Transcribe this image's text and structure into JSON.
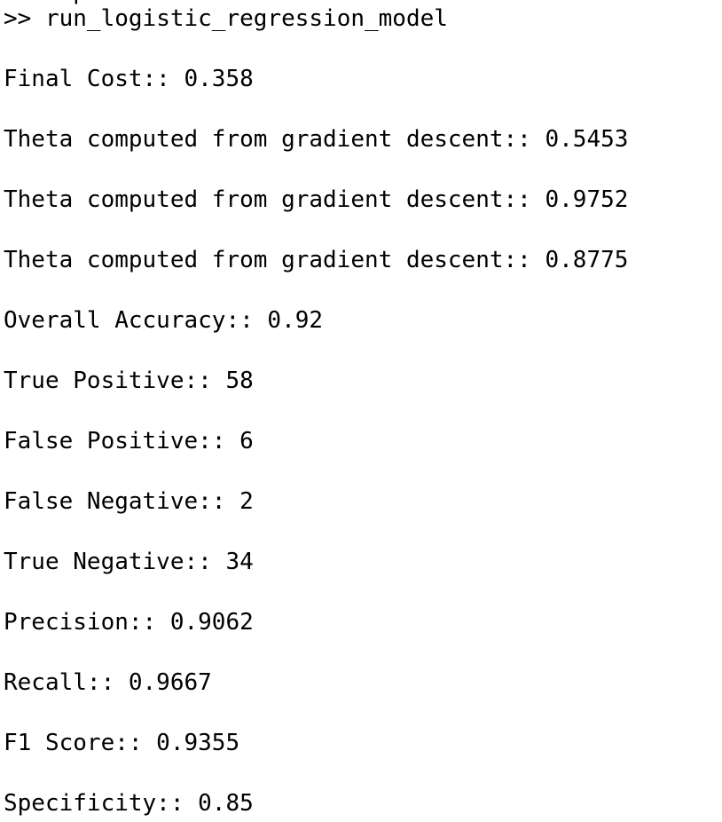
{
  "console": {
    "clipped_previous_line": "> help dir",
    "prompt": ">> ",
    "command": "run_logistic_regression_model",
    "output": [
      "Final Cost:: 0.358",
      "Theta computed from gradient descent:: 0.5453",
      "Theta computed from gradient descent:: 0.9752",
      "Theta computed from gradient descent:: 0.8775",
      "Overall Accuracy:: 0.92",
      "True Positive:: 58",
      "False Positive:: 6",
      "False Negative:: 2",
      "True Negative:: 34",
      "Precision:: 0.9062",
      "Recall:: 0.9667",
      "F1 Score:: 0.9355",
      "Specificity:: 0.85"
    ]
  }
}
